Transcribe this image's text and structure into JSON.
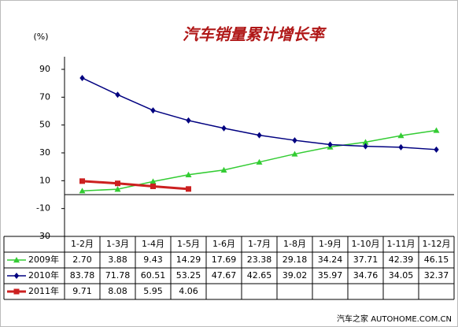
{
  "chart_data": {
    "type": "line",
    "title": "汽车销量累计增长率",
    "y_unit": "(%)",
    "categories": [
      "1-2月",
      "1-3月",
      "1-4月",
      "1-5月",
      "1-6月",
      "1-7月",
      "1-8月",
      "1-9月",
      "1-10月",
      "1-11月",
      "1-12月"
    ],
    "series": [
      {
        "name": "2009年",
        "color": "#33cc33",
        "marker": "triangle",
        "values": [
          2.7,
          3.88,
          9.43,
          14.29,
          17.69,
          23.38,
          29.18,
          34.24,
          37.71,
          42.39,
          46.15
        ],
        "value_labels": [
          "2.70",
          "3.88",
          "9.43",
          "14.29",
          "17.69",
          "23.38",
          "29.18",
          "34.24",
          "37.71",
          "42.39",
          "46.15"
        ]
      },
      {
        "name": "2010年",
        "color": "#000080",
        "marker": "diamond",
        "values": [
          83.78,
          71.78,
          60.51,
          53.25,
          47.67,
          42.65,
          39.02,
          35.97,
          34.76,
          34.05,
          32.37
        ],
        "value_labels": [
          "83.78",
          "71.78",
          "60.51",
          "53.25",
          "47.67",
          "42.65",
          "39.02",
          "35.97",
          "34.76",
          "34.05",
          "32.37"
        ]
      },
      {
        "name": "2011年",
        "color": "#cc2020",
        "marker": "square",
        "values": [
          9.71,
          8.08,
          5.95,
          4.06,
          null,
          null,
          null,
          null,
          null,
          null,
          null
        ],
        "value_labels": [
          "9.71",
          "8.08",
          "5.95",
          "4.06",
          null,
          null,
          null,
          null,
          null,
          null,
          null
        ]
      }
    ],
    "ylim": [
      -30,
      90
    ],
    "yticks": [
      -30,
      -10,
      10,
      30,
      50,
      70,
      90
    ],
    "grid": false,
    "watermark": "汽车之家 AUTOHOME.COM.CN"
  }
}
